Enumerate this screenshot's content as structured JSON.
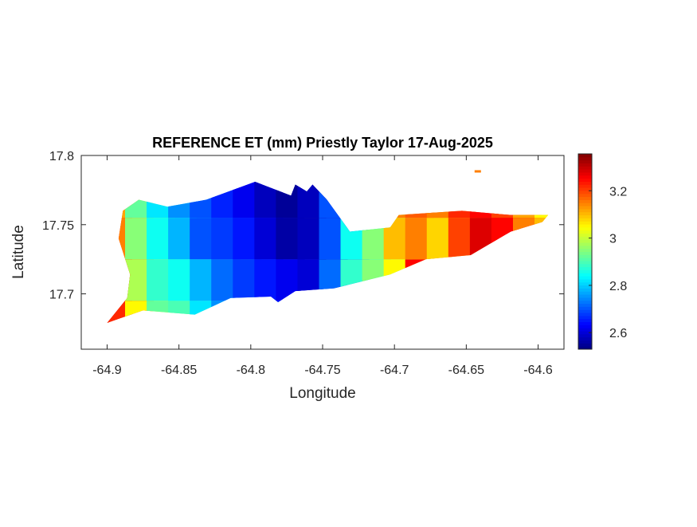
{
  "chart_data": {
    "type": "heatmap",
    "title": "REFERENCE ET (mm) Priestly Taylor 17-Aug-2025",
    "xlabel": "Longitude",
    "ylabel": "Latitude",
    "xlim": [
      -64.918,
      -64.582
    ],
    "ylim": [
      17.66,
      17.8
    ],
    "xticks": [
      -64.9,
      -64.85,
      -64.8,
      -64.75,
      -64.7,
      -64.65,
      -64.6
    ],
    "xtick_labels": [
      "-64.9",
      "-64.85",
      "-64.8",
      "-64.75",
      "-64.7",
      "-64.65",
      "-64.6"
    ],
    "yticks": [
      17.7,
      17.75,
      17.8
    ],
    "ytick_labels": [
      "17.7",
      "17.75",
      "17.8"
    ],
    "colorbar": {
      "colormap": "jet",
      "clim": [
        2.53,
        3.356
      ],
      "ticks": [
        2.6,
        2.8,
        3,
        3.2
      ],
      "tick_labels": [
        "2.6",
        "2.8",
        "3",
        "3.2"
      ]
    },
    "grid": false,
    "island_outline": [
      [
        -64.9,
        17.679
      ],
      [
        -64.886,
        17.697
      ],
      [
        -64.884,
        17.714
      ],
      [
        -64.892,
        17.74
      ],
      [
        -64.889,
        17.76
      ],
      [
        -64.878,
        17.768
      ],
      [
        -64.858,
        17.763
      ],
      [
        -64.831,
        17.768
      ],
      [
        -64.797,
        17.781
      ],
      [
        -64.772,
        17.771
      ],
      [
        -64.769,
        17.779
      ],
      [
        -64.761,
        17.774
      ],
      [
        -64.757,
        17.779
      ],
      [
        -64.747,
        17.768
      ],
      [
        -64.731,
        17.745
      ],
      [
        -64.703,
        17.748
      ],
      [
        -64.697,
        17.757
      ],
      [
        -64.653,
        17.76
      ],
      [
        -64.619,
        17.757
      ],
      [
        -64.593,
        17.757
      ],
      [
        -64.597,
        17.752
      ],
      [
        -64.619,
        17.745
      ],
      [
        -64.647,
        17.728
      ],
      [
        -64.678,
        17.725
      ],
      [
        -64.703,
        17.714
      ],
      [
        -64.742,
        17.704
      ],
      [
        -64.769,
        17.702
      ],
      [
        -64.781,
        17.694
      ],
      [
        -64.786,
        17.698
      ],
      [
        -64.814,
        17.697
      ],
      [
        -64.839,
        17.685
      ],
      [
        -64.875,
        17.688
      ],
      [
        -64.892,
        17.682
      ]
    ],
    "lon_bins": [
      -64.9,
      -64.885,
      -64.87,
      -64.855,
      -64.84,
      -64.825,
      -64.81,
      -64.795,
      -64.78,
      -64.765,
      -64.75,
      -64.735,
      -64.72,
      -64.705,
      -64.69,
      -64.675,
      -64.66,
      -64.645,
      -64.63,
      -64.615,
      -64.6,
      -64.585
    ],
    "lat_bins": [
      17.68,
      17.71,
      17.74,
      17.77
    ],
    "values": [
      [
        3.3,
        3.22,
        3.05,
        2.92,
        2.9,
        2.82,
        2.75,
        2.72,
        2.68,
        2.65,
        2.62,
        2.7,
        2.85,
        2.92,
        2.98,
        3.05,
        3.1,
        3.15,
        3.18,
        3.2,
        3.15,
        3.1
      ],
      [
        3.28,
        3.18,
        2.98,
        2.88,
        2.85,
        2.78,
        2.72,
        2.68,
        2.65,
        2.62,
        2.6,
        2.72,
        2.88,
        2.95,
        3.05,
        3.25,
        3.22,
        3.18,
        3.22,
        3.25,
        3.18,
        3.12
      ],
      [
        3.25,
        3.15,
        2.95,
        2.85,
        2.78,
        2.7,
        2.68,
        2.65,
        2.6,
        2.56,
        2.58,
        2.7,
        2.85,
        2.95,
        3.1,
        3.15,
        3.08,
        3.2,
        3.28,
        3.25,
        3.15,
        3.1
      ],
      [
        3.2,
        3.12,
        2.92,
        2.82,
        2.75,
        2.7,
        2.66,
        2.62,
        2.58,
        2.55,
        2.58,
        2.7,
        2.82,
        2.95,
        3.15,
        3.18,
        3.15,
        3.22,
        3.25,
        3.2,
        3.12,
        3.05
      ]
    ],
    "islet": {
      "lon": -64.642,
      "lat": 17.7885,
      "value": 3.15
    }
  }
}
